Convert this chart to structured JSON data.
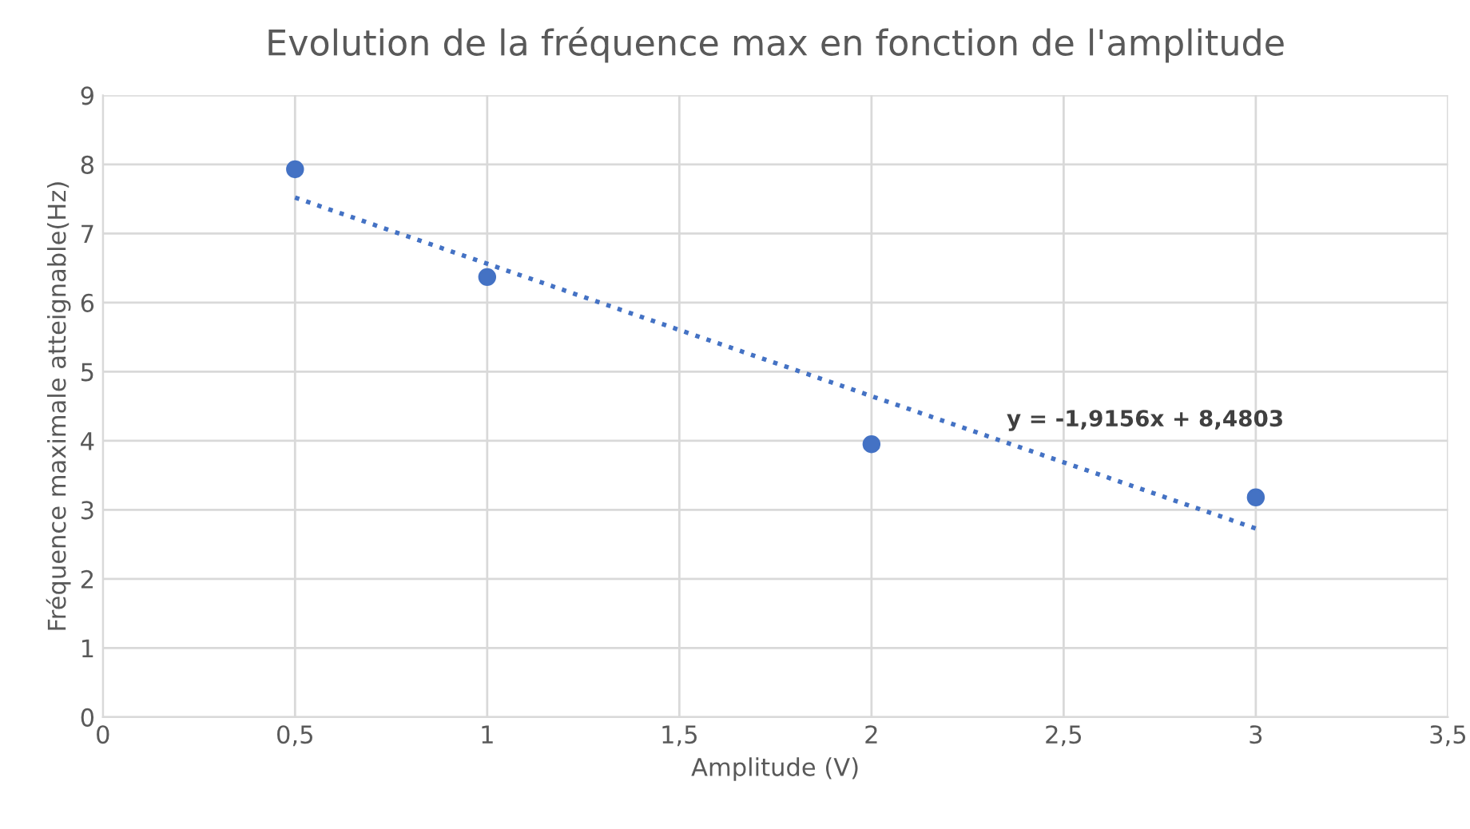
{
  "chart_data": {
    "type": "scatter",
    "title": "Evolution de la fréquence max en fonction de l'amplitude",
    "xlabel": "Amplitude (V)",
    "ylabel": "Fréquence maximale atteignable(Hz)",
    "x": [
      0.5,
      1,
      2,
      3
    ],
    "series": [
      {
        "color": "#4472c4",
        "marker": "circle",
        "values": [
          7.93,
          6.37,
          3.95,
          3.18
        ]
      },
      {
        "type": "line",
        "color": "#4472c4",
        "marker": "none",
        "line_style": "dotted",
        "x": [
          0.5,
          3
        ],
        "values": [
          7.52,
          2.73
        ]
      }
    ],
    "annotations": [
      "y = -1,9156x + 8,4803"
    ],
    "xlim": [
      0,
      3.5
    ],
    "xticks": [
      0,
      {
        "value": 0.5,
        "label": "0,5"
      },
      1,
      {
        "value": 1.5,
        "label": "1,5"
      },
      2,
      {
        "value": 2.5,
        "label": "2,5"
      },
      3,
      {
        "value": 3.5,
        "label": "3,5"
      }
    ],
    "ylim": [
      0,
      9
    ],
    "yticks": [
      0,
      1,
      2,
      3,
      4,
      5,
      6,
      7,
      8,
      9
    ],
    "grid": true,
    "legend": false
  }
}
